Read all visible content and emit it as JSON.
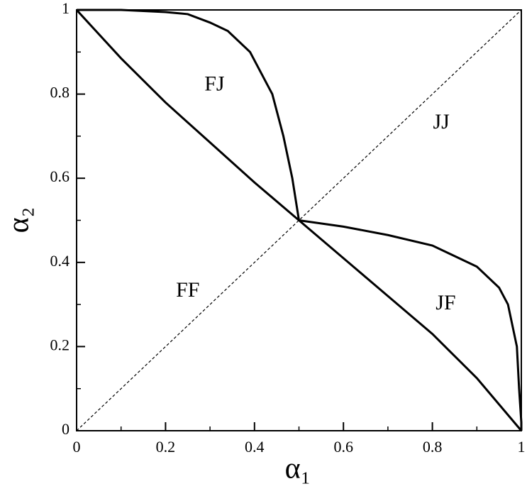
{
  "chart_data": {
    "type": "line",
    "xlabel": "α₁",
    "ylabel": "α₂",
    "xlim": [
      0,
      1
    ],
    "ylim": [
      0,
      1
    ],
    "xticks": [
      0,
      0.2,
      0.4,
      0.6,
      0.8,
      1
    ],
    "yticks": [
      0,
      0.2,
      0.4,
      0.6,
      0.8,
      1
    ],
    "xminorticks": [
      0.1,
      0.3,
      0.5,
      0.7,
      0.9
    ],
    "yminorticks": [
      0.1,
      0.3,
      0.5,
      0.7,
      0.9
    ],
    "series": [
      {
        "color": "#000000",
        "style": "dashed",
        "x": [
          0,
          1
        ],
        "values": [
          0,
          1
        ]
      },
      {
        "color": "#000000",
        "style": "solid",
        "x": [
          0,
          0.1,
          0.2,
          0.3,
          0.4,
          0.5,
          0.6,
          0.7,
          0.8,
          0.9,
          1
        ],
        "values": [
          1,
          0.885,
          0.78,
          0.685,
          0.59,
          0.5,
          0.41,
          0.32,
          0.23,
          0.125,
          0
        ]
      },
      {
        "color": "#000000",
        "style": "solid",
        "x": [
          0,
          0.1,
          0.2,
          0.25,
          0.3,
          0.34,
          0.39,
          0.44,
          0.465,
          0.485,
          0.5
        ],
        "values": [
          1,
          1,
          0.995,
          0.99,
          0.97,
          0.95,
          0.9,
          0.8,
          0.7,
          0.6,
          0.5
        ]
      },
      {
        "color": "#000000",
        "style": "solid",
        "x": [
          0.5,
          0.6,
          0.7,
          0.8,
          0.9,
          0.95,
          0.97,
          0.99,
          0.995,
          1,
          1
        ],
        "values": [
          0.5,
          0.485,
          0.465,
          0.44,
          0.39,
          0.34,
          0.3,
          0.2,
          0.1,
          0.02,
          0
        ]
      }
    ],
    "annotations": [
      {
        "text": "FJ",
        "x": 0.31,
        "y": 0.82
      },
      {
        "text": "JJ",
        "x": 0.82,
        "y": 0.73
      },
      {
        "text": "FF",
        "x": 0.25,
        "y": 0.33
      },
      {
        "text": "JF",
        "x": 0.83,
        "y": 0.3
      }
    ]
  }
}
